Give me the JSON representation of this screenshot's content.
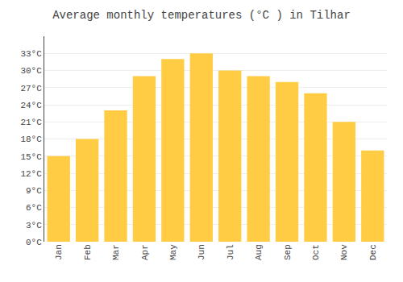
{
  "chart_data": {
    "type": "bar",
    "title": "Average monthly temperatures (°C ) in Tilhar",
    "categories": [
      "Jan",
      "Feb",
      "Mar",
      "Apr",
      "May",
      "Jun",
      "Jul",
      "Aug",
      "Sep",
      "Oct",
      "Nov",
      "Dec"
    ],
    "values": [
      15,
      18,
      23,
      29,
      32,
      33,
      30,
      29,
      28,
      26,
      21,
      16
    ],
    "color": "#FFCC44",
    "ylim": [
      0,
      36
    ],
    "yticks": [
      {
        "value": 0,
        "label": "0°C"
      },
      {
        "value": 3,
        "label": "3°C"
      },
      {
        "value": 6,
        "label": "6°C"
      },
      {
        "value": 9,
        "label": "9°C"
      },
      {
        "value": 12,
        "label": "12°C"
      },
      {
        "value": 15,
        "label": "15°C"
      },
      {
        "value": 18,
        "label": "18°C"
      },
      {
        "value": 21,
        "label": "21°C"
      },
      {
        "value": 24,
        "label": "24°C"
      },
      {
        "value": 27,
        "label": "27°C"
      },
      {
        "value": 30,
        "label": "30°C"
      },
      {
        "value": 33,
        "label": "33°C"
      }
    ],
    "grid": true
  }
}
